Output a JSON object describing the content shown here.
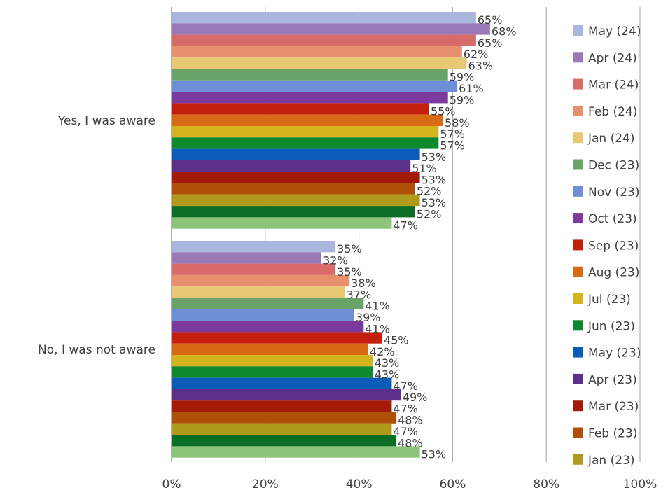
{
  "chart_data": {
    "type": "bar",
    "orientation": "horizontal",
    "categories": [
      "Yes, I was aware",
      "No, I was not aware"
    ],
    "xlim": [
      0,
      100
    ],
    "x_ticks": [
      "0%",
      "20%",
      "40%",
      "60%",
      "80%",
      "100%"
    ],
    "grid": true,
    "legend_position": "right",
    "series": [
      {
        "name": "May (24)",
        "color": "#a9b7df",
        "values": [
          65,
          35
        ],
        "labels": [
          "65%",
          "35%"
        ]
      },
      {
        "name": "Apr (24)",
        "color": "#9a79b6",
        "values": [
          68,
          32
        ],
        "labels": [
          "68%",
          "32%"
        ]
      },
      {
        "name": "Mar (24)",
        "color": "#d86a6a",
        "values": [
          65,
          35
        ],
        "labels": [
          "65%",
          "35%"
        ]
      },
      {
        "name": "Feb (24)",
        "color": "#e8906e",
        "values": [
          62,
          38
        ],
        "labels": [
          "62%",
          "38%"
        ]
      },
      {
        "name": "Jan (24)",
        "color": "#e9c874",
        "values": [
          63,
          37
        ],
        "labels": [
          "63%",
          "37%"
        ]
      },
      {
        "name": "Dec (23)",
        "color": "#6aa36a",
        "values": [
          59,
          41
        ],
        "labels": [
          "59%",
          "41%"
        ]
      },
      {
        "name": "Nov (23)",
        "color": "#6e8fd6",
        "values": [
          61,
          39
        ],
        "labels": [
          "61%",
          "39%"
        ]
      },
      {
        "name": "Oct (23)",
        "color": "#7c3a9e",
        "values": [
          59,
          41
        ],
        "labels": [
          "59%",
          "41%"
        ]
      },
      {
        "name": "Sep (23)",
        "color": "#c41e0c",
        "values": [
          55,
          45
        ],
        "labels": [
          "55%",
          "45%"
        ]
      },
      {
        "name": "Aug (23)",
        "color": "#d86a14",
        "values": [
          58,
          42
        ],
        "labels": [
          "58%",
          "42%"
        ]
      },
      {
        "name": "Jul (23)",
        "color": "#d4b41c",
        "values": [
          57,
          43
        ],
        "labels": [
          "57%",
          "43%"
        ]
      },
      {
        "name": "Jun (23)",
        "color": "#0e8a2c",
        "values": [
          57,
          43
        ],
        "labels": [
          "57%",
          "43%"
        ]
      },
      {
        "name": "May (23)",
        "color": "#0a5cb8",
        "values": [
          53,
          47
        ],
        "labels": [
          "53%",
          "47%"
        ]
      },
      {
        "name": "Apr (23)",
        "color": "#5b2f8a",
        "values": [
          51,
          49
        ],
        "labels": [
          "51%",
          "49%"
        ]
      },
      {
        "name": "Mar (23)",
        "color": "#a31a08",
        "values": [
          53,
          47
        ],
        "labels": [
          "53%",
          "47%"
        ]
      },
      {
        "name": "Feb (23)",
        "color": "#b05008",
        "values": [
          52,
          48
        ],
        "labels": [
          "52%",
          "48%"
        ]
      },
      {
        "name": "Jan (23)",
        "color": "#b09a1c",
        "values": [
          53,
          47
        ],
        "labels": [
          "53%",
          "47%"
        ]
      },
      {
        "name": "",
        "color": "#0a6e24",
        "values": [
          52,
          48
        ],
        "labels": [
          "52%",
          "48%"
        ]
      },
      {
        "name": "",
        "color": "#8cc47a",
        "values": [
          47,
          53
        ],
        "labels": [
          "47%",
          "53%"
        ]
      }
    ]
  }
}
